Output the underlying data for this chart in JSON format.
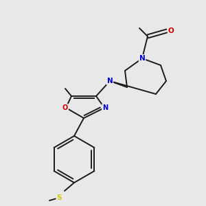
{
  "background_color": "#e8e8e8",
  "bond_color": "#1a1a1a",
  "N_color": "#0000cc",
  "O_color": "#cc0000",
  "S_color": "#cccc00",
  "figsize": [
    3.0,
    3.0
  ],
  "dpi": 100,
  "xlim": [
    0,
    300
  ],
  "ylim": [
    0,
    300
  ]
}
